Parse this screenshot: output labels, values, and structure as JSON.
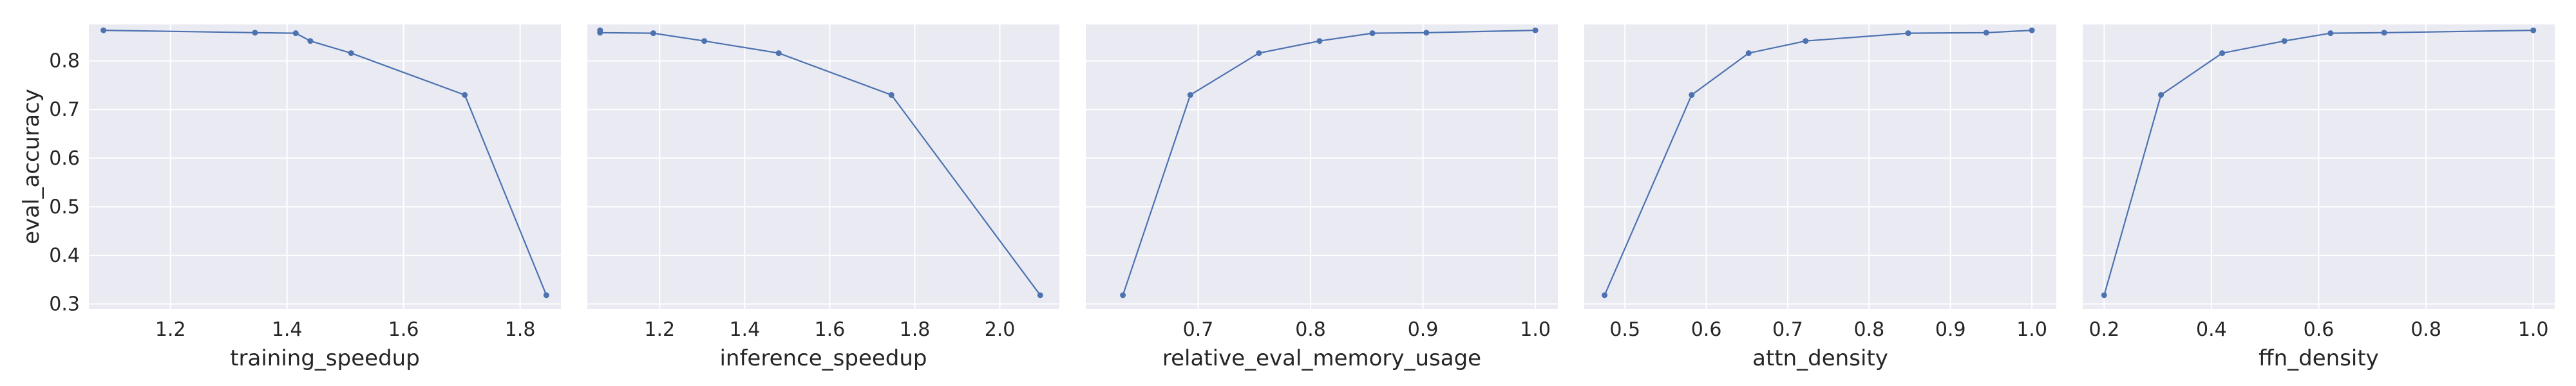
{
  "chart_data": [
    {
      "type": "line",
      "xlabel": "training_speedup",
      "ylabel": "eval_accuracy",
      "xlim": [
        1.06,
        1.87
      ],
      "ylim": [
        0.29,
        0.875
      ],
      "xticks": [
        1.2,
        1.4,
        1.6,
        1.8
      ],
      "xtick_labels": [
        "1.2",
        "1.4",
        "1.6",
        "1.8"
      ],
      "yticks": [
        0.3,
        0.4,
        0.5,
        0.6,
        0.7,
        0.8
      ],
      "ytick_labels": [
        "0.3",
        "0.4",
        "0.5",
        "0.6",
        "0.7",
        "0.8"
      ],
      "grid": true,
      "series": [
        {
          "x": [
            1.085,
            1.345,
            1.415,
            1.44,
            1.51,
            1.705,
            1.845
          ],
          "y": [
            0.863,
            0.858,
            0.857,
            0.841,
            0.816,
            0.73,
            0.318
          ]
        }
      ]
    },
    {
      "type": "line",
      "xlabel": "inference_speedup",
      "ylabel": "",
      "xlim": [
        1.03,
        2.14
      ],
      "ylim": [
        0.29,
        0.875
      ],
      "xticks": [
        1.2,
        1.4,
        1.6,
        1.8,
        2.0
      ],
      "xtick_labels": [
        "1.2",
        "1.4",
        "1.6",
        "1.8",
        "2.0"
      ],
      "yticks": [
        0.3,
        0.4,
        0.5,
        0.6,
        0.7,
        0.8
      ],
      "ytick_labels": [],
      "grid": true,
      "series": [
        {
          "x": [
            2.095,
            1.745,
            1.48,
            1.305,
            1.185,
            1.06,
            1.06
          ],
          "y": [
            0.318,
            0.73,
            0.816,
            0.841,
            0.857,
            0.858,
            0.863
          ]
        }
      ]
    },
    {
      "type": "line",
      "xlabel": "relative_eval_memory_usage",
      "ylabel": "",
      "xlim": [
        0.6,
        1.02
      ],
      "ylim": [
        0.29,
        0.875
      ],
      "xticks": [
        0.7,
        0.8,
        0.9,
        1.0
      ],
      "xtick_labels": [
        "0.7",
        "0.8",
        "0.9",
        "1.0"
      ],
      "yticks": [
        0.3,
        0.4,
        0.5,
        0.6,
        0.7,
        0.8
      ],
      "ytick_labels": [],
      "grid": true,
      "series": [
        {
          "x": [
            0.633,
            0.693,
            0.754,
            0.808,
            0.855,
            0.903,
            1.0
          ],
          "y": [
            0.318,
            0.73,
            0.816,
            0.841,
            0.857,
            0.858,
            0.863
          ]
        }
      ]
    },
    {
      "type": "line",
      "xlabel": "attn_density",
      "ylabel": "",
      "xlim": [
        0.45,
        1.03
      ],
      "ylim": [
        0.29,
        0.875
      ],
      "xticks": [
        0.5,
        0.6,
        0.7,
        0.8,
        0.9,
        1.0
      ],
      "xtick_labels": [
        "0.5",
        "0.6",
        "0.7",
        "0.8",
        "0.9",
        "1.0"
      ],
      "yticks": [
        0.3,
        0.4,
        0.5,
        0.6,
        0.7,
        0.8
      ],
      "ytick_labels": [],
      "grid": true,
      "series": [
        {
          "x": [
            0.475,
            0.582,
            0.652,
            0.722,
            0.848,
            0.944,
            1.0
          ],
          "y": [
            0.318,
            0.73,
            0.816,
            0.841,
            0.857,
            0.858,
            0.863
          ]
        }
      ]
    },
    {
      "type": "line",
      "xlabel": "ffn_density",
      "ylabel": "",
      "xlim": [
        0.16,
        1.04
      ],
      "ylim": [
        0.29,
        0.875
      ],
      "xticks": [
        0.2,
        0.4,
        0.6,
        0.8,
        1.0
      ],
      "xtick_labels": [
        "0.2",
        "0.4",
        "0.6",
        "0.8",
        "1.0"
      ],
      "yticks": [
        0.3,
        0.4,
        0.5,
        0.6,
        0.7,
        0.8
      ],
      "ytick_labels": [],
      "grid": true,
      "series": [
        {
          "x": [
            0.2,
            0.306,
            0.42,
            0.536,
            0.622,
            0.722,
            1.0
          ],
          "y": [
            0.318,
            0.73,
            0.816,
            0.841,
            0.857,
            0.858,
            0.863
          ]
        }
      ]
    }
  ],
  "colors": {
    "line": "#4c72b0",
    "plot_background": "#eaeaf2",
    "grid": "#ffffff",
    "text": "#262626"
  }
}
